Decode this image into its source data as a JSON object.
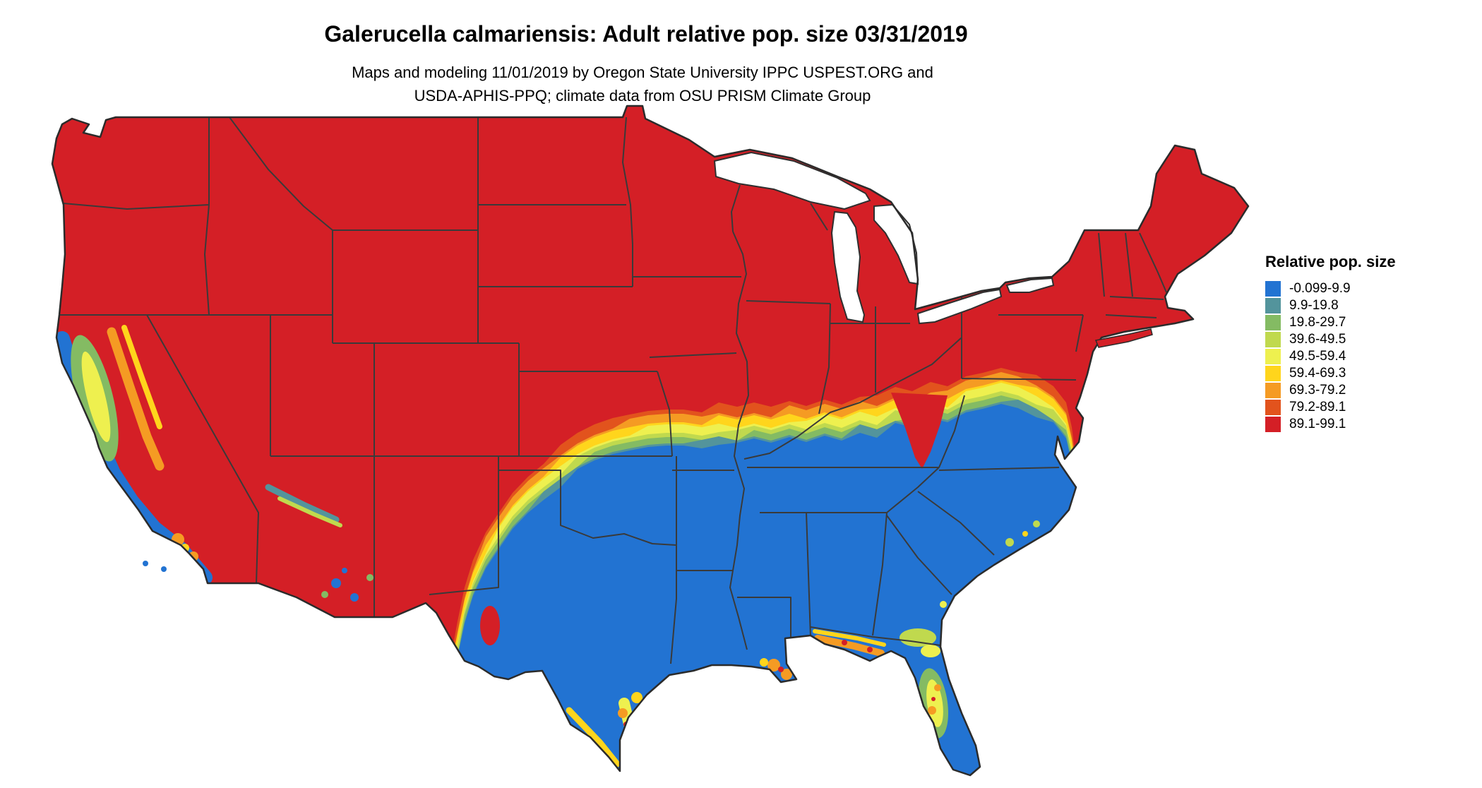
{
  "title": "Galerucella calmariensis: Adult relative pop. size 03/31/2019",
  "subtitle_line1": "Maps and modeling 11/01/2019 by Oregon State University IPPC USPEST.ORG and",
  "subtitle_line2": "USDA-APHIS-PPQ; climate data from OSU PRISM Climate Group",
  "legend": {
    "title": "Relative pop. size",
    "items": [
      {
        "label": "-0.099-9.9",
        "color": "#2273d2"
      },
      {
        "label": "9.9-19.8",
        "color": "#53949c"
      },
      {
        "label": "19.8-29.7",
        "color": "#84bb63"
      },
      {
        "label": "39.6-49.5",
        "color": "#c0d94e"
      },
      {
        "label": "49.5-59.4",
        "color": "#eef04f"
      },
      {
        "label": "59.4-69.3",
        "color": "#ffd51c"
      },
      {
        "label": "69.3-79.2",
        "color": "#f59b23"
      },
      {
        "label": "79.2-89.1",
        "color": "#e2531d"
      },
      {
        "label": "89.1-99.1",
        "color": "#d41f26"
      }
    ]
  }
}
